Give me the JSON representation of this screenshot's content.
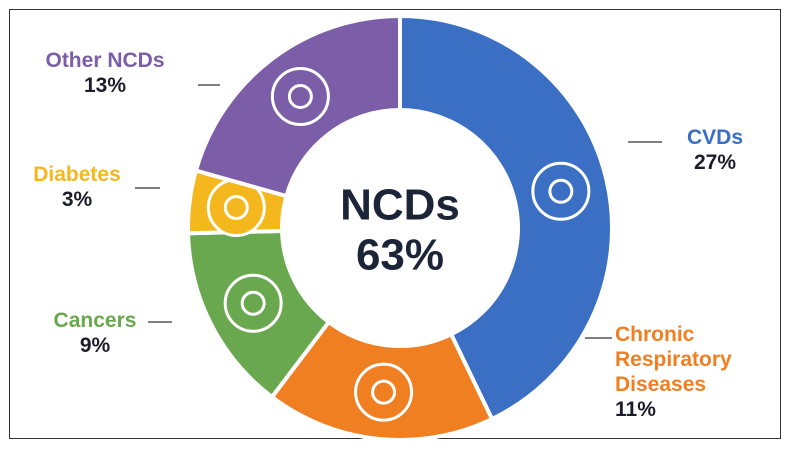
{
  "chart_data": {
    "type": "donut",
    "center_title": "NCDs",
    "center_value": 63,
    "center_value_label": "63%",
    "categories": [
      "CVDs",
      "Chronic Respiratory Diseases",
      "Cancers",
      "Diabetes",
      "Other NCDs"
    ],
    "values": [
      27,
      11,
      9,
      3,
      13
    ],
    "value_labels": [
      "27%",
      "11%",
      "9%",
      "3%",
      "13%"
    ],
    "colors": [
      "#3a6fc4",
      "#f07f22",
      "#6aa84f",
      "#f4b81e",
      "#7b5ea7"
    ]
  }
}
